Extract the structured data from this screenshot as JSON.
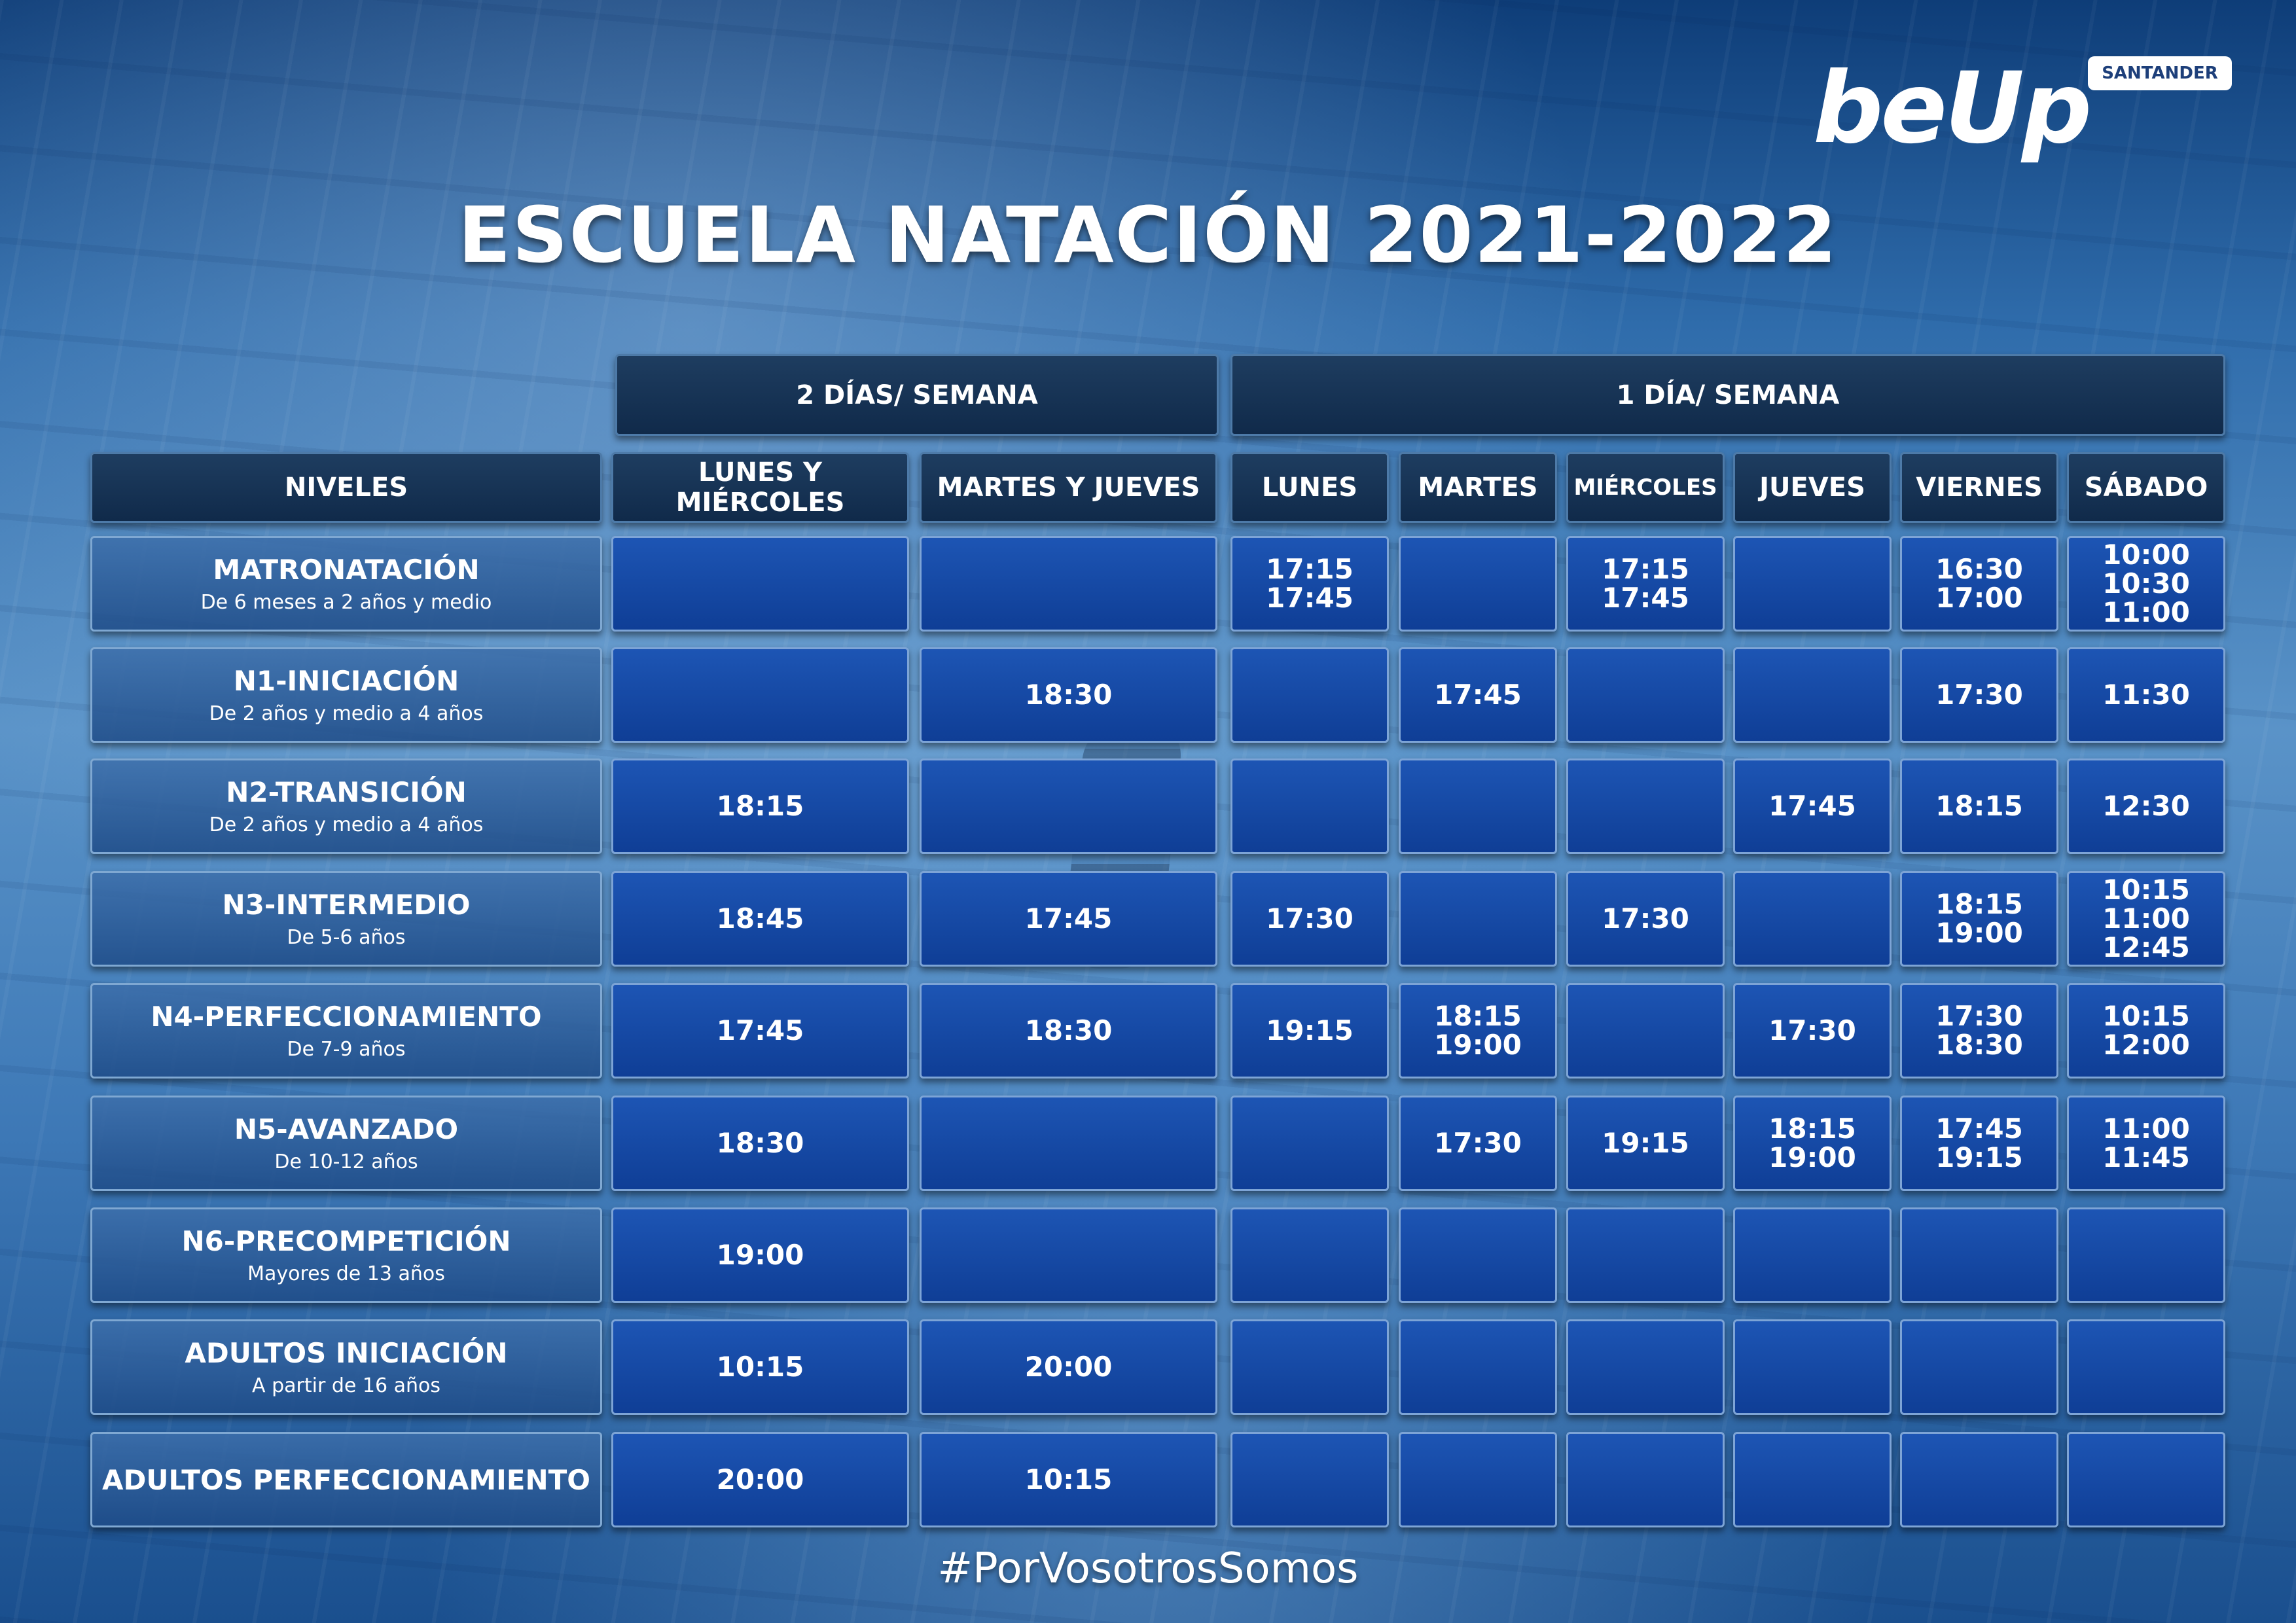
{
  "logo": {
    "text": "beUp",
    "badge": "SANTANDER"
  },
  "title": "ESCUELA NATACIÓN 2021-2022",
  "groups": {
    "two_days": "2 DÍAS/ SEMANA",
    "one_day": "1 DÍA/ SEMANA"
  },
  "columns": [
    "NIVELES",
    "LUNES Y MIÉRCOLES",
    "MARTES Y JUEVES",
    "LUNES",
    "MARTES",
    "MIÉRCOLES",
    "JUEVES",
    "VIERNES",
    "SÁBADO"
  ],
  "rows": [
    {
      "level": "MATRONATACIÓN",
      "sub": "De 6 meses a 2 años y medio",
      "times": [
        [],
        [],
        [
          "17:15",
          "17:45"
        ],
        [],
        [
          "17:15",
          "17:45"
        ],
        [],
        [
          "16:30",
          "17:00"
        ],
        [
          "10:00",
          "10:30",
          "11:00"
        ]
      ]
    },
    {
      "level": "N1-INICIACIÓN",
      "sub": "De 2 años y medio a 4 años",
      "times": [
        [],
        [
          "18:30"
        ],
        [],
        [
          "17:45"
        ],
        [],
        [],
        [
          "17:30"
        ],
        [
          "11:30"
        ]
      ]
    },
    {
      "level": "N2-TRANSICIÓN",
      "sub": "De 2 años y medio a 4 años",
      "times": [
        [
          "18:15"
        ],
        [],
        [],
        [],
        [],
        [
          "17:45"
        ],
        [
          "18:15"
        ],
        [
          "12:30"
        ]
      ]
    },
    {
      "level": "N3-INTERMEDIO",
      "sub": "De 5-6 años",
      "times": [
        [
          "18:45"
        ],
        [
          "17:45"
        ],
        [
          "17:30"
        ],
        [],
        [
          "17:30"
        ],
        [],
        [
          "18:15",
          "19:00"
        ],
        [
          "10:15",
          "11:00",
          "12:45"
        ]
      ]
    },
    {
      "level": "N4-PERFECCIONAMIENTO",
      "sub": "De 7-9 años",
      "times": [
        [
          "17:45"
        ],
        [
          "18:30"
        ],
        [
          "19:15"
        ],
        [
          "18:15",
          "19:00"
        ],
        [],
        [
          "17:30"
        ],
        [
          "17:30",
          "18:30"
        ],
        [
          "10:15",
          "12:00"
        ]
      ]
    },
    {
      "level": "N5-AVANZADO",
      "sub": "De 10-12 años",
      "times": [
        [
          "18:30"
        ],
        [],
        [],
        [
          "17:30"
        ],
        [
          "19:15"
        ],
        [
          "18:15",
          "19:00"
        ],
        [
          "17:45",
          "19:15"
        ],
        [
          "11:00",
          "11:45"
        ]
      ]
    },
    {
      "level": "N6-PRECOMPETICIÓN",
      "sub": "Mayores de 13 años",
      "times": [
        [
          "19:00"
        ],
        [],
        [],
        [],
        [],
        [],
        [],
        []
      ]
    },
    {
      "level": "ADULTOS INICIACIÓN",
      "sub": "A partir de 16 años",
      "times": [
        [
          "10:15"
        ],
        [
          "20:00"
        ],
        [],
        [],
        [],
        [],
        [],
        []
      ]
    },
    {
      "level": "ADULTOS PERFECCIONAMIENTO",
      "sub": "",
      "times": [
        [
          "20:00"
        ],
        [
          "10:15"
        ],
        [],
        [],
        [],
        [],
        [],
        []
      ]
    }
  ],
  "hashtag": "#PorVosotrosSomos"
}
